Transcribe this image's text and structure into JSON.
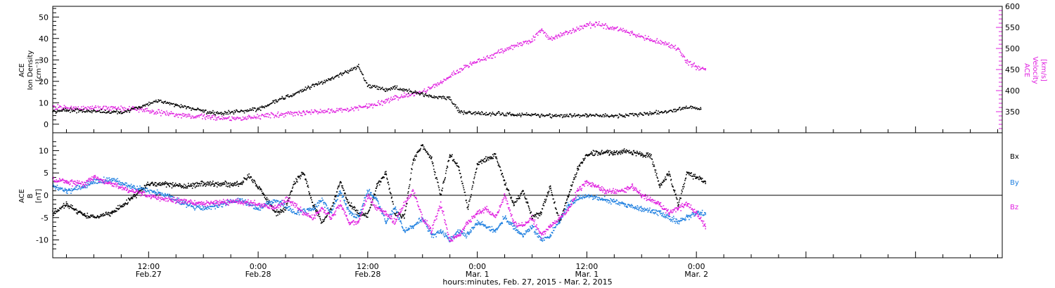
{
  "chart_data": [
    {
      "type": "scatter",
      "panel": "top",
      "xlabel": "hours:minutes, Feb. 27, 2015 - Mar. 2, 2015",
      "x_unit": "hours since 2015-02-27 00:00",
      "xlim": [
        1.5,
        105.5
      ],
      "x_ticks": [
        {
          "x": 12,
          "time": "12:00",
          "date": "Feb.27"
        },
        {
          "x": 24,
          "time": "0:00",
          "date": "Feb.28"
        },
        {
          "x": 36,
          "time": "12:00",
          "date": "Feb.28"
        },
        {
          "x": 48,
          "time": "0:00",
          "date": "Mar. 1"
        },
        {
          "x": 60,
          "time": "12:00",
          "date": "Mar. 1"
        },
        {
          "x": 72,
          "time": "0:00",
          "date": "Mar. 2"
        }
      ],
      "left_axis": {
        "label_lines": [
          "ACE",
          "Ion Density",
          "[cm⁻³]"
        ],
        "ylim": [
          -4,
          55
        ],
        "ticks": [
          0,
          10,
          20,
          30,
          40,
          50
        ],
        "color": "#000000"
      },
      "right_axis": {
        "label_lines": [
          "ACE",
          "Velocity",
          "[km/s]"
        ],
        "ylim": [
          300,
          600
        ],
        "ticks": [
          350,
          400,
          450,
          500,
          550,
          600
        ],
        "color": "#e020e0"
      },
      "series": [
        {
          "axis": "left",
          "color": "#000000",
          "points": [
            [
              1.5,
              6
            ],
            [
              3,
              6.5
            ],
            [
              6,
              6
            ],
            [
              9,
              5.5
            ],
            [
              11,
              8
            ],
            [
              13,
              11
            ],
            [
              15,
              9
            ],
            [
              18,
              6
            ],
            [
              20,
              5
            ],
            [
              22,
              6
            ],
            [
              24,
              7
            ],
            [
              26,
              11
            ],
            [
              28,
              14
            ],
            [
              30,
              18
            ],
            [
              32,
              21
            ],
            [
              34,
              25
            ],
            [
              35,
              27
            ],
            [
              36,
              18
            ],
            [
              38,
              16
            ],
            [
              39,
              17
            ],
            [
              41,
              15
            ],
            [
              43,
              13
            ],
            [
              45,
              12
            ],
            [
              46,
              6
            ],
            [
              48,
              5
            ],
            [
              52,
              4.5
            ],
            [
              56,
              4
            ],
            [
              60,
              4
            ],
            [
              63,
              4
            ],
            [
              66,
              4.5
            ],
            [
              69,
              6
            ],
            [
              71,
              8
            ],
            [
              72.5,
              7
            ]
          ]
        },
        {
          "axis": "right",
          "color": "#e020e0",
          "points": [
            [
              1.5,
              360
            ],
            [
              5,
              358
            ],
            [
              8,
              357
            ],
            [
              11,
              356
            ],
            [
              13,
              348
            ],
            [
              16,
              342
            ],
            [
              19,
              336
            ],
            [
              21,
              333
            ],
            [
              23,
              336
            ],
            [
              25,
              340
            ],
            [
              27,
              344
            ],
            [
              29,
              347
            ],
            [
              32,
              352
            ],
            [
              34,
              356
            ],
            [
              36,
              362
            ],
            [
              38,
              374
            ],
            [
              39,
              385
            ],
            [
              40,
              388
            ],
            [
              42,
              395
            ],
            [
              44,
              420
            ],
            [
              46,
              448
            ],
            [
              48,
              470
            ],
            [
              50,
              488
            ],
            [
              52,
              505
            ],
            [
              54,
              520
            ],
            [
              55,
              545
            ],
            [
              56,
              522
            ],
            [
              58,
              540
            ],
            [
              60,
              555
            ],
            [
              61,
              558
            ],
            [
              63,
              548
            ],
            [
              65,
              535
            ],
            [
              67,
              522
            ],
            [
              69,
              508
            ],
            [
              70,
              500
            ],
            [
              71,
              468
            ],
            [
              72,
              455
            ],
            [
              73,
              452
            ]
          ]
        }
      ]
    },
    {
      "type": "scatter",
      "panel": "bottom",
      "left_axis": {
        "label_lines": [
          "ACE",
          "B",
          "[nT]"
        ],
        "ylim": [
          -14,
          14
        ],
        "ticks": [
          -10,
          -5,
          0,
          5,
          10
        ],
        "color": "#000000"
      },
      "zero_line": true,
      "legend": {
        "placement": "right"
      },
      "series": [
        {
          "name": "Bx",
          "color": "#000000",
          "points": [
            [
              1.5,
              -4
            ],
            [
              3,
              -2
            ],
            [
              5,
              -4.5
            ],
            [
              6,
              -5
            ],
            [
              8,
              -4
            ],
            [
              10,
              -1
            ],
            [
              12,
              2.5
            ],
            [
              14,
              2.5
            ],
            [
              16,
              2
            ],
            [
              18,
              2.5
            ],
            [
              20,
              2.5
            ],
            [
              22,
              2.5
            ],
            [
              23,
              4.5
            ],
            [
              24,
              2
            ],
            [
              26,
              -4
            ],
            [
              27,
              -3
            ],
            [
              28,
              3
            ],
            [
              29,
              5
            ],
            [
              30,
              -2
            ],
            [
              31,
              -6
            ],
            [
              32,
              -3
            ],
            [
              33,
              3
            ],
            [
              34,
              -2
            ],
            [
              35,
              -4
            ],
            [
              36,
              -4.5
            ],
            [
              37,
              2
            ],
            [
              38,
              5
            ],
            [
              39,
              -4
            ],
            [
              40,
              -5
            ],
            [
              41,
              8
            ],
            [
              42,
              11
            ],
            [
              43,
              8
            ],
            [
              44,
              0
            ],
            [
              45,
              9
            ],
            [
              46,
              6
            ],
            [
              47,
              -3
            ],
            [
              48,
              7
            ],
            [
              49,
              8
            ],
            [
              50,
              9
            ],
            [
              51,
              3
            ],
            [
              52,
              -2
            ],
            [
              53,
              1
            ],
            [
              54,
              -5
            ],
            [
              55,
              -4
            ],
            [
              56,
              2
            ],
            [
              57,
              -6
            ],
            [
              58,
              0
            ],
            [
              59,
              6
            ],
            [
              60,
              9
            ],
            [
              61,
              9.5
            ],
            [
              63,
              9.5
            ],
            [
              64,
              10
            ],
            [
              65,
              9.5
            ],
            [
              66,
              9
            ],
            [
              67,
              9
            ],
            [
              68,
              2
            ],
            [
              69,
              5
            ],
            [
              70,
              -2
            ],
            [
              71,
              5
            ],
            [
              72,
              4
            ],
            [
              73,
              3
            ]
          ]
        },
        {
          "name": "By",
          "color": "#2080e0",
          "points": [
            [
              1.5,
              2
            ],
            [
              3,
              1
            ],
            [
              5,
              2
            ],
            [
              6,
              3
            ],
            [
              8,
              3.5
            ],
            [
              10,
              2
            ],
            [
              12,
              1
            ],
            [
              14,
              0
            ],
            [
              16,
              -2
            ],
            [
              18,
              -3
            ],
            [
              20,
              -2
            ],
            [
              22,
              -1
            ],
            [
              24,
              -3
            ],
            [
              26,
              -1
            ],
            [
              28,
              -4
            ],
            [
              30,
              -3
            ],
            [
              31,
              -1
            ],
            [
              32,
              -4
            ],
            [
              33,
              1
            ],
            [
              34,
              -4
            ],
            [
              35,
              -5
            ],
            [
              36,
              1
            ],
            [
              37,
              -1
            ],
            [
              38,
              -6
            ],
            [
              39,
              -3
            ],
            [
              40,
              -8
            ],
            [
              41,
              -7
            ],
            [
              42,
              -5
            ],
            [
              43,
              -9
            ],
            [
              44,
              -8
            ],
            [
              45,
              -10
            ],
            [
              46,
              -8
            ],
            [
              47,
              -9
            ],
            [
              48,
              -6
            ],
            [
              49,
              -7
            ],
            [
              50,
              -8
            ],
            [
              51,
              -5
            ],
            [
              52,
              -7
            ],
            [
              53,
              -9
            ],
            [
              54,
              -7
            ],
            [
              55,
              -10
            ],
            [
              56,
              -9
            ],
            [
              57,
              -6
            ],
            [
              58,
              -2
            ],
            [
              59,
              -1
            ],
            [
              60,
              0
            ],
            [
              62,
              -1
            ],
            [
              64,
              -2
            ],
            [
              66,
              -3
            ],
            [
              68,
              -4
            ],
            [
              69,
              -5
            ],
            [
              70,
              -6
            ],
            [
              71,
              -5
            ],
            [
              72,
              -4
            ],
            [
              73,
              -4
            ]
          ]
        },
        {
          "name": "Bz",
          "color": "#e020e0",
          "points": [
            [
              1.5,
              3.5
            ],
            [
              3,
              3
            ],
            [
              5,
              2.5
            ],
            [
              6,
              4
            ],
            [
              8,
              2.5
            ],
            [
              10,
              1
            ],
            [
              12,
              0
            ],
            [
              14,
              -1
            ],
            [
              16,
              -1.5
            ],
            [
              18,
              -2
            ],
            [
              20,
              -1.5
            ],
            [
              22,
              -1.5
            ],
            [
              24,
              -2
            ],
            [
              26,
              -3
            ],
            [
              27,
              -1
            ],
            [
              28,
              -2
            ],
            [
              29,
              -4
            ],
            [
              30,
              -5
            ],
            [
              31,
              -3
            ],
            [
              32,
              -5
            ],
            [
              33,
              -2
            ],
            [
              34,
              -6
            ],
            [
              35,
              -6
            ],
            [
              36,
              0
            ],
            [
              37,
              -3
            ],
            [
              38,
              -4
            ],
            [
              39,
              -6
            ],
            [
              40,
              -2
            ],
            [
              41,
              1
            ],
            [
              42,
              -5
            ],
            [
              43,
              -8
            ],
            [
              44,
              -2
            ],
            [
              45,
              -10
            ],
            [
              46,
              -9
            ],
            [
              47,
              -6
            ],
            [
              48,
              -4
            ],
            [
              49,
              -3
            ],
            [
              50,
              -5
            ],
            [
              51,
              0
            ],
            [
              52,
              -6
            ],
            [
              53,
              -7
            ],
            [
              54,
              -5
            ],
            [
              55,
              -9
            ],
            [
              56,
              -7
            ],
            [
              57,
              -5
            ],
            [
              58,
              -3
            ],
            [
              59,
              1
            ],
            [
              60,
              3
            ],
            [
              62,
              1
            ],
            [
              64,
              1
            ],
            [
              65,
              2
            ],
            [
              66,
              0
            ],
            [
              67,
              -1
            ],
            [
              68,
              -2
            ],
            [
              69,
              -4
            ],
            [
              70,
              -3
            ],
            [
              71,
              -2
            ],
            [
              72,
              -4
            ],
            [
              73,
              -7
            ]
          ]
        }
      ]
    }
  ]
}
